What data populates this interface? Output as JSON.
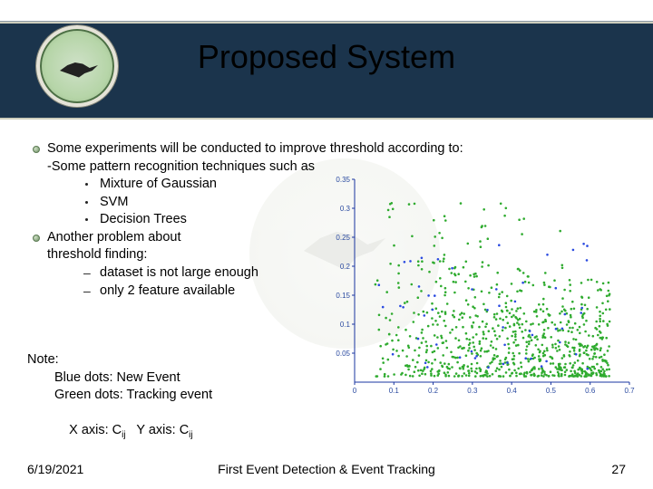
{
  "title": "Proposed System",
  "header": {
    "band_color": "#1b344c",
    "line_color": "#cecebd"
  },
  "bullets": {
    "b1": "Some experiments will be conducted to improve threshold according to:",
    "b1a": "-Some pattern recognition techniques such as",
    "b1a1": "Mixture of Gaussian",
    "b1a2": "SVM",
    "b1a3": "Decision Trees",
    "b2": "Another problem about",
    "b2b": "threshold finding:",
    "b2d1": "dataset is not large enough",
    "b2d2": "only 2 feature available"
  },
  "note": {
    "title": "Note:",
    "l1": "Blue dots: New Event",
    "l2": "Green dots: Tracking event",
    "l3a": "X axis: C",
    "l3a_sub": "ij",
    "l3b": "   Y axis: C",
    "l3b_sub": "ij"
  },
  "footer": {
    "date": "6/19/2021",
    "center": "First Event Detection & Event Tracking",
    "page": "27"
  },
  "chart": {
    "type": "scatter",
    "background_color": "#ffffff",
    "grid_color": "#e0e0e0",
    "axis_color": "#1934a0",
    "xlim": [
      0,
      0.7
    ],
    "ylim": [
      0,
      0.35
    ],
    "xticks": [
      0,
      0.1,
      0.2,
      0.3,
      0.4,
      0.5,
      0.6,
      0.7
    ],
    "yticks": [
      0.05,
      0.1,
      0.15,
      0.2,
      0.25,
      0.3,
      0.35
    ],
    "xtick_labels": [
      "0",
      "0.1",
      "0.2",
      "0.3",
      "0.4",
      "0.5",
      "0.6",
      "0.7"
    ],
    "ytick_labels": [
      "0.05",
      "0.1",
      "0.15",
      "0.2",
      "0.25",
      "0.3",
      "0.35"
    ],
    "marker_size": 1.3,
    "green_color": "#2fab2f",
    "blue_color": "#2a4ae0",
    "label_fontsize": 8,
    "green_density_desc": "dense wedge of green points filling 0.05<x<0.7, 0<y<0.25, densest near x~0.25,y~0.05",
    "blue_density_desc": "sparse blue points mixed with green, roughly 40-60 points scattered among green region"
  }
}
